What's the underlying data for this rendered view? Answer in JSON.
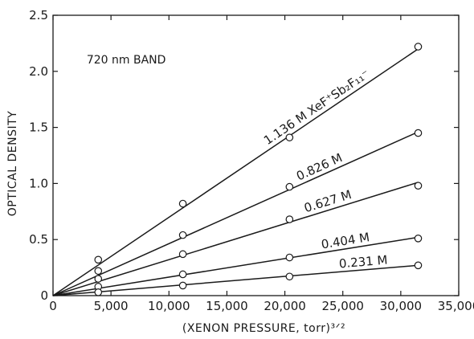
{
  "chart_data": {
    "type": "scatter",
    "xlabel": "(XENON PRESSURE, torr)³ᐟ²",
    "ylabel": "OPTICAL DENSITY",
    "annotation": "720 nm BAND",
    "xlim": [
      0,
      35000
    ],
    "ylim": [
      0,
      2.5
    ],
    "x_ticks": [
      0,
      5000,
      10000,
      15000,
      20000,
      25000,
      30000,
      35000
    ],
    "x_tick_labels": [
      "0",
      "5,000",
      "10,000",
      "15,000",
      "20,000",
      "25,000",
      "30,000",
      "35,000"
    ],
    "y_ticks": [
      0,
      0.5,
      1.0,
      1.5,
      2.0,
      2.5
    ],
    "y_tick_labels": [
      "0",
      "0.5",
      "1.0",
      "1.5",
      "2.0",
      "2.5"
    ],
    "grid": false,
    "series": [
      {
        "name": "1.136 M",
        "label_suffix": "XeF⁺Sb₂F₁₁⁻",
        "x": [
          0,
          3900,
          11200,
          20400,
          31500
        ],
        "y": [
          0,
          0.32,
          0.82,
          1.41,
          2.22
        ],
        "fit_end": 2.2
      },
      {
        "name": "0.826 M",
        "label_suffix": "",
        "x": [
          0,
          3900,
          11200,
          20400,
          31500
        ],
        "y": [
          0,
          0.22,
          0.54,
          0.97,
          1.45
        ],
        "fit_end": 1.46
      },
      {
        "name": "0.627 M",
        "label_suffix": "",
        "x": [
          0,
          3900,
          11200,
          20400,
          31500
        ],
        "y": [
          0,
          0.15,
          0.37,
          0.68,
          0.98
        ],
        "fit_end": 1.01
      },
      {
        "name": "0.404 M",
        "label_suffix": "",
        "x": [
          0,
          3900,
          11200,
          20400,
          31500
        ],
        "y": [
          0,
          0.08,
          0.19,
          0.34,
          0.51
        ],
        "fit_end": 0.52
      },
      {
        "name": "0.231 M",
        "label_suffix": "",
        "x": [
          0,
          3900,
          11200,
          20400,
          31500
        ],
        "y": [
          0,
          0.03,
          0.09,
          0.17,
          0.27
        ],
        "fit_end": 0.27
      }
    ]
  }
}
